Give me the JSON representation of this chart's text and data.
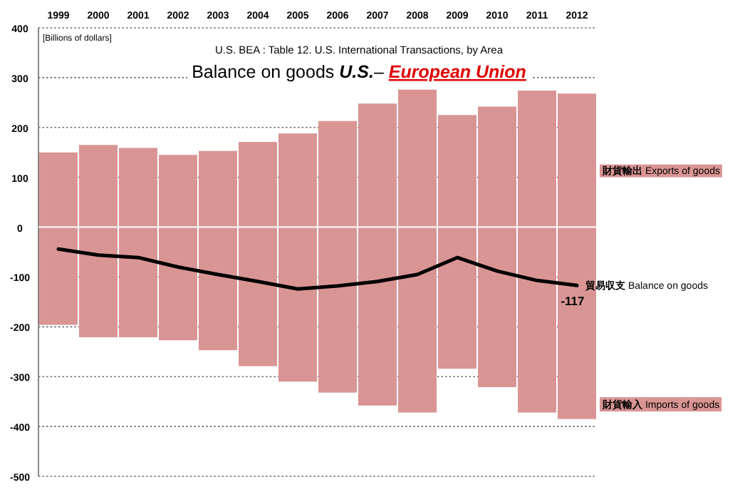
{
  "chart_data": {
    "type": "bar",
    "title": "Balance on goods *U.S.*– *European Union*",
    "subtitle": "U.S.  BEA : Table 12. U.S. International Transactions, by Area",
    "ylabel": "[Billions of dollars]",
    "categories": [
      "1999",
      "2000",
      "2001",
      "2002",
      "2003",
      "2004",
      "2005",
      "2006",
      "2007",
      "2008",
      "2009",
      "2010",
      "2011",
      "2012"
    ],
    "stacked": true,
    "grid": "y",
    "ylim": [
      -500,
      400
    ],
    "yticks": [
      -500,
      -400,
      -300,
      -200,
      -100,
      0,
      100,
      200,
      300,
      400
    ],
    "series": [
      {
        "name": "**財貨輸出** Exports of goods",
        "color": "#d99594",
        "values": [
          150,
          165,
          159,
          145,
          153,
          171,
          188,
          213,
          248,
          276,
          225,
          242,
          274,
          268
        ]
      },
      {
        "name": "**財貨輸入** Imports of goods",
        "color": "#d99594",
        "values": [
          -196,
          -221,
          -221,
          -227,
          -247,
          -279,
          -310,
          -332,
          -358,
          -372,
          -284,
          -321,
          -372,
          -385
        ]
      },
      {
        "name": "**貿易収支** Balance on goods",
        "type": "line",
        "color": "#000000",
        "marker": "none",
        "line_style": "solid",
        "values": [
          -44,
          -56,
          -61,
          -80,
          -95,
          -109,
          -124,
          -118,
          -109,
          -95,
          -61,
          -88,
          -107,
          -117
        ],
        "value_labels": [
          null,
          null,
          null,
          null,
          null,
          null,
          null,
          null,
          null,
          null,
          null,
          null,
          null,
          "-117"
        ]
      }
    ]
  }
}
